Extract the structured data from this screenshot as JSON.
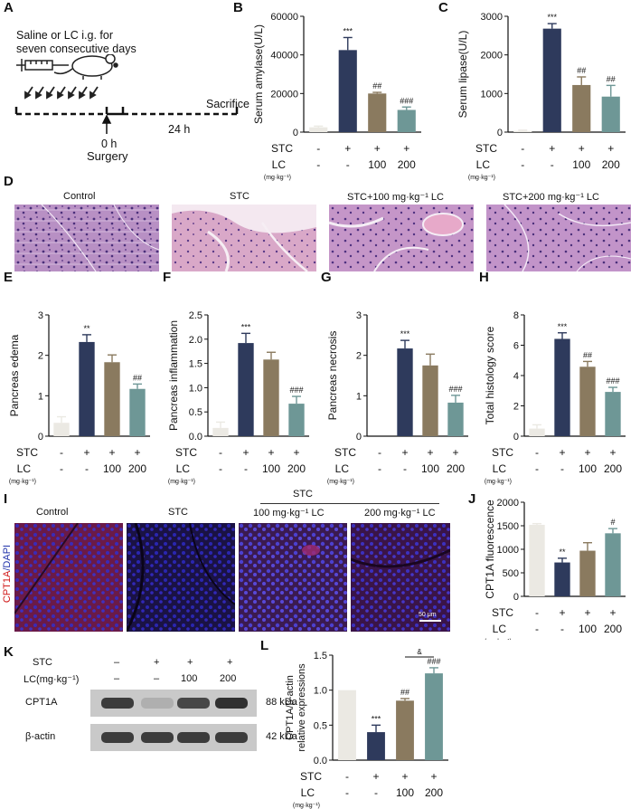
{
  "letters": {
    "A": "A",
    "B": "B",
    "C": "C",
    "D": "D",
    "E": "E",
    "F": "F",
    "G": "G",
    "H": "H",
    "I": "I",
    "J": "J",
    "K": "K",
    "L": "L"
  },
  "panel_a": {
    "line1": "Saline or LC i.g. for",
    "line2": "seven consecutive days",
    "sacrifice": "Sacrifice",
    "time0": "0 h",
    "time24": "24 h",
    "surgery": "Surgery"
  },
  "row_labels": {
    "stc": "STC",
    "lc": "LC",
    "unit": "(mg·kg⁻¹)"
  },
  "treatment_rows": {
    "stc": [
      "-",
      "+",
      "+",
      "+"
    ],
    "lc": [
      "-",
      "-",
      "100",
      "200"
    ]
  },
  "histology_titles": [
    "Control",
    "STC",
    "STC+100 mg·kg⁻¹ LC",
    "STC+200 mg·kg⁻¹ LC"
  ],
  "fluor_titles": [
    "Control",
    "STC",
    "100 mg·kg⁻¹ LC",
    "200 mg·kg⁻¹ LC"
  ],
  "fluor_group": "STC",
  "fluor_scale": "50 μm",
  "fluor_ylabel_red": "CPT1A",
  "fluor_ylabel_blue": "/DAPI",
  "western": {
    "row_stc": "STC",
    "row_lc": "LC(mg·kg⁻¹)",
    "stc": [
      "–",
      "+",
      "+",
      "+"
    ],
    "lc": [
      "–",
      "–",
      "100",
      "200"
    ],
    "bands": [
      {
        "name": "CPT1A",
        "size": "88 kDa",
        "intensity": [
          0.85,
          0.35,
          0.8,
          0.9
        ]
      },
      {
        "name": "β-actin",
        "size": "42 kDa",
        "intensity": [
          0.85,
          0.85,
          0.85,
          0.85
        ]
      }
    ]
  },
  "colors": {
    "control": "#ebe9e3",
    "stc": "#2e3a5c",
    "lc100": "#8a7a5f",
    "lc200": "#6e9796"
  },
  "chart_data": [
    {
      "id": "B",
      "type": "bar",
      "ylabel": "Serum amylase(U/L)",
      "yticks": [
        "0",
        "20000",
        "40000",
        "60000"
      ],
      "ylim": [
        0,
        60000
      ],
      "values": [
        2500,
        42500,
        20000,
        11500
      ],
      "errors": [
        600,
        6500,
        600,
        1500
      ],
      "sig": [
        "",
        "***",
        "##",
        "###"
      ]
    },
    {
      "id": "C",
      "type": "bar",
      "ylabel": "Serum lipase(U/L)",
      "yticks": [
        "0",
        "1000",
        "2000",
        "3000"
      ],
      "ylim": [
        0,
        3000
      ],
      "values": [
        30,
        2680,
        1220,
        920
      ],
      "errors": [
        20,
        130,
        210,
        290
      ],
      "sig": [
        "",
        "***",
        "##",
        "##"
      ]
    },
    {
      "id": "E",
      "type": "bar",
      "ylabel": "Pancreas edema",
      "yticks": [
        "0",
        "1",
        "2",
        "3"
      ],
      "ylim": [
        0,
        3
      ],
      "values": [
        0.33,
        2.33,
        1.83,
        1.17
      ],
      "errors": [
        0.15,
        0.18,
        0.18,
        0.12
      ],
      "sig": [
        "",
        "**",
        "",
        "##"
      ]
    },
    {
      "id": "F",
      "type": "bar",
      "ylabel": "Pancreas inflammation",
      "yticks": [
        "0.0",
        "0.5",
        "1.0",
        "1.5",
        "2.0",
        "2.5"
      ],
      "ylim": [
        0,
        2.5
      ],
      "values": [
        0.17,
        1.92,
        1.58,
        0.67
      ],
      "errors": [
        0.12,
        0.2,
        0.15,
        0.15
      ],
      "sig": [
        "",
        "***",
        "",
        "###"
      ]
    },
    {
      "id": "G",
      "type": "bar",
      "ylabel": "Pancreas necrosis",
      "yticks": [
        "0",
        "1",
        "2",
        "3"
      ],
      "ylim": [
        0,
        3
      ],
      "values": [
        0,
        2.17,
        1.75,
        0.83
      ],
      "errors": [
        0,
        0.2,
        0.28,
        0.18
      ],
      "sig": [
        "",
        "***",
        "",
        "###"
      ]
    },
    {
      "id": "H",
      "type": "bar",
      "ylabel": "Total histology score",
      "yticks": [
        "0",
        "2",
        "4",
        "6",
        "8"
      ],
      "ylim": [
        0,
        8
      ],
      "values": [
        0.5,
        6.42,
        4.58,
        2.92
      ],
      "errors": [
        0.25,
        0.4,
        0.35,
        0.3
      ],
      "sig": [
        "",
        "***",
        "##",
        "###"
      ]
    },
    {
      "id": "J",
      "type": "bar",
      "ylabel": "CPT1A fluorescence",
      "yticks": [
        "0",
        "500",
        "1000",
        "1500",
        "2000"
      ],
      "ylim": [
        0,
        2000
      ],
      "values": [
        1520,
        720,
        970,
        1340
      ],
      "errors": [
        25,
        90,
        170,
        100
      ],
      "sig": [
        "",
        "**",
        "",
        "#"
      ]
    },
    {
      "id": "L",
      "type": "bar",
      "ylabel": "CPT1A/β-actin relative expressions",
      "yticks": [
        "0.0",
        "0.5",
        "1.0",
        "1.5"
      ],
      "ylim": [
        0,
        1.5
      ],
      "values": [
        1.0,
        0.4,
        0.85,
        1.24
      ],
      "errors": [
        0,
        0.1,
        0.03,
        0.08
      ],
      "sig": [
        "",
        "***",
        "##",
        "###"
      ],
      "bracket": "&"
    }
  ]
}
